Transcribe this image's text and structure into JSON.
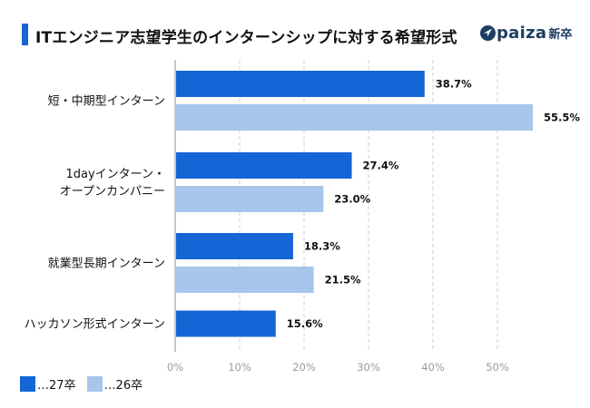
{
  "header": {
    "title": "ITエンジニア志望学生のインターンシップに対する希望形式",
    "brand_name": "paiza",
    "brand_suffix": "新卒"
  },
  "colors": {
    "title_bar": "#1a64d4",
    "series_27": "#1565d6",
    "series_26": "#a8c6ec",
    "axis": "#b4b4b4",
    "grid": "#cfcfcf"
  },
  "chart_data": {
    "type": "bar",
    "orientation": "horizontal",
    "title": "ITエンジニア志望学生のインターンシップに対する希望形式",
    "categories": [
      [
        "短・中期型インターン"
      ],
      [
        "1dayインターン・",
        "オープンカンパニー"
      ],
      [
        "就業型長期インターン"
      ],
      [
        "ハッカソン形式インターン"
      ]
    ],
    "series": [
      {
        "name": "…27卒",
        "values": [
          38.7,
          27.4,
          18.3,
          15.6
        ],
        "labels": [
          "38.7%",
          "27.4%",
          "18.3%",
          "15.6%"
        ]
      },
      {
        "name": "…26卒",
        "values": [
          55.5,
          23.0,
          21.5,
          null
        ],
        "labels": [
          "55.5%",
          "23.0%",
          "21.5%",
          null
        ]
      }
    ],
    "xlim": [
      0,
      55.5
    ],
    "xticks": [
      0,
      10,
      20,
      30,
      40,
      50
    ],
    "xtick_labels": [
      "0%",
      "10%",
      "20%",
      "30%",
      "40%",
      "50%"
    ],
    "grid": true,
    "xlabel": "",
    "ylabel": "",
    "legend_position": "bottom-left"
  }
}
